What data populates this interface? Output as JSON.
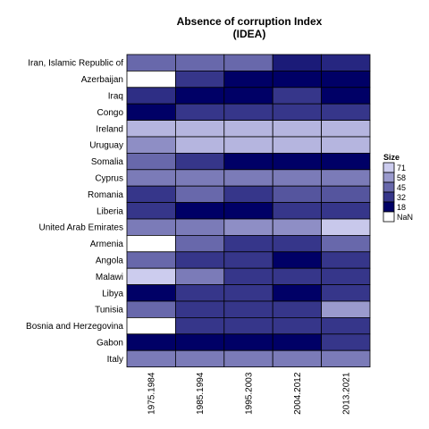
{
  "chart_data": {
    "type": "heatmap",
    "title": "Absence of corruption Index",
    "subtitle": "(IDEA)",
    "xlabel": "",
    "ylabel": "",
    "columns": [
      "1975.1984",
      "1985.1994",
      "1995.2003",
      "2004.2012",
      "2013.2021"
    ],
    "rows": [
      "Iran, Islamic Republic of",
      "Azerbaijan",
      "Iraq",
      "Congo",
      "Ireland",
      "Uruguay",
      "Somalia",
      "Cyprus",
      "Romania",
      "Liberia",
      "United Arab Emirates",
      "Armenia",
      "Angola",
      "Malawi",
      "Libya",
      "Tunisia",
      "Bosnia and Herzegovina",
      "Gabon",
      "Italy"
    ],
    "values": [
      [
        45,
        45,
        45,
        25,
        28
      ],
      [
        null,
        32,
        18,
        18,
        18
      ],
      [
        30,
        18,
        18,
        32,
        18
      ],
      [
        18,
        32,
        32,
        32,
        32
      ],
      [
        65,
        65,
        65,
        65,
        65
      ],
      [
        55,
        65,
        65,
        65,
        65
      ],
      [
        45,
        32,
        18,
        18,
        18
      ],
      [
        50,
        50,
        50,
        50,
        50
      ],
      [
        32,
        45,
        32,
        40,
        40
      ],
      [
        32,
        18,
        18,
        32,
        32
      ],
      [
        50,
        50,
        55,
        55,
        70
      ],
      [
        null,
        45,
        32,
        32,
        45
      ],
      [
        45,
        32,
        32,
        18,
        32
      ],
      [
        71,
        50,
        32,
        32,
        32
      ],
      [
        18,
        32,
        32,
        18,
        32
      ],
      [
        45,
        32,
        32,
        32,
        58
      ],
      [
        null,
        32,
        32,
        32,
        32
      ],
      [
        18,
        18,
        18,
        18,
        32
      ],
      [
        50,
        50,
        50,
        50,
        50
      ]
    ],
    "color_scale": {
      "low": "#000066",
      "high": "#ccccee",
      "nan": "#ffffff",
      "min": 18,
      "max": 71
    },
    "legend": {
      "title": "Size",
      "placement": "right",
      "entries": [
        {
          "label": "71",
          "value": 71
        },
        {
          "label": "58",
          "value": 58
        },
        {
          "label": "45",
          "value": 45
        },
        {
          "label": "32",
          "value": 32
        },
        {
          "label": "18",
          "value": 18
        },
        {
          "label": "NaN",
          "value": null
        }
      ]
    },
    "grid": false
  }
}
